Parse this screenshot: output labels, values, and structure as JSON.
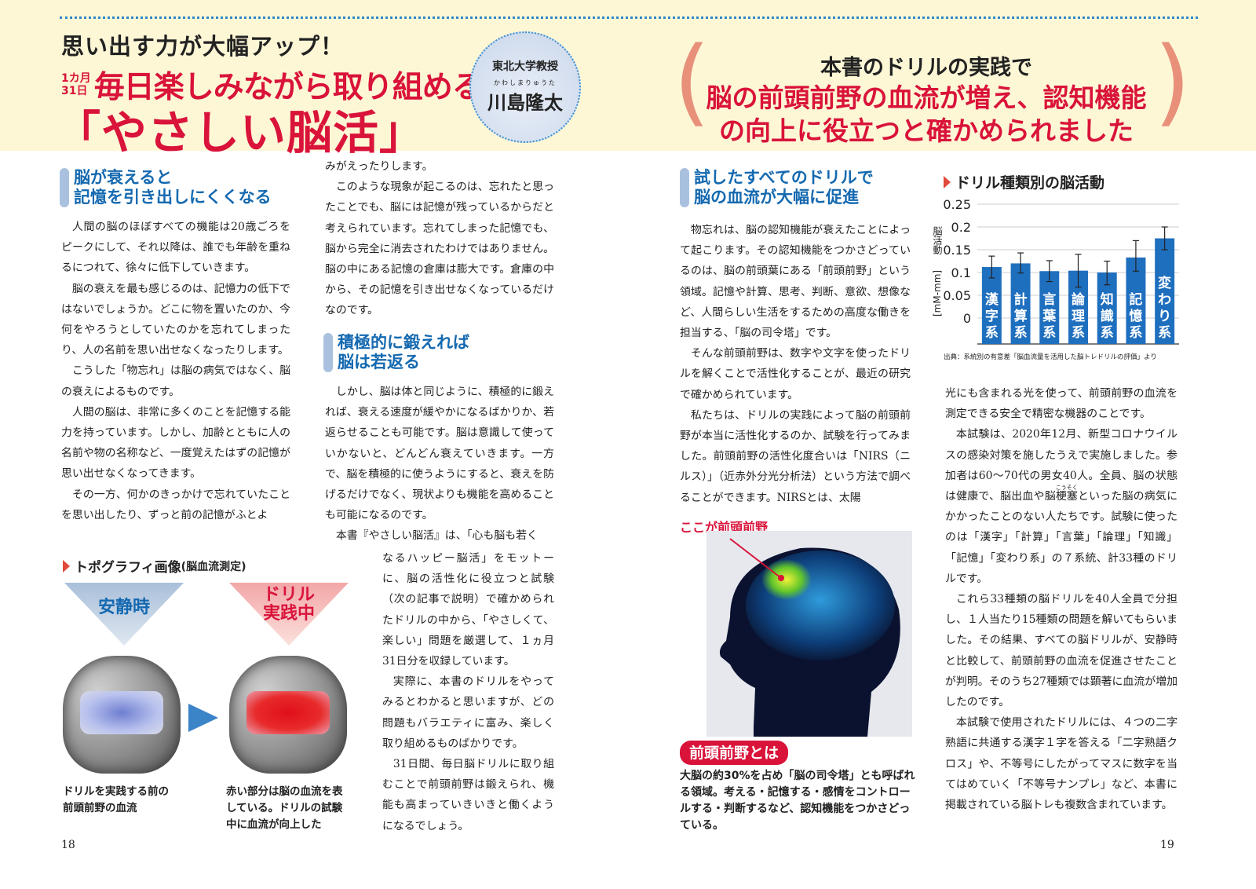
{
  "header": {
    "kicker": "思い出す力が大幅アップ！",
    "period_top": "1カ月",
    "period_bottom": "31日",
    "subtitle": "毎日楽しみながら取り組める",
    "title": "「やさしい脳活」",
    "author_role": "東北大学教授",
    "author_ruby": "かわしまりゅうた",
    "author_name": "川島隆太",
    "right_line1": "本書のドリルの実践で",
    "right_line2": "脳の前頭前野の血流が増え、認知機能",
    "right_line3": "の向上に役立つと確かめられました",
    "paren_open": "(",
    "paren_close": ")"
  },
  "left_page": {
    "heading1": [
      "脳が衰えると",
      "記憶を引き出しにくくなる"
    ],
    "col1": [
      "人間の脳のほぼすべての機能は20歳ごろをピークにして、それ以降は、誰でも年齢を重ねるにつれて、徐々に低下していきます。",
      "脳の衰えを最も感じるのは、記憶力の低下ではないでしょうか。どこに物を置いたのか、今何をやろうとしていたのかを忘れてしまったり、人の名前を思い出せなくなったりします。",
      "こうした「物忘れ」は脳の病気ではなく、脳の衰えによるものです。",
      "人間の脳は、非常に多くのことを記憶する能力を持っています。しかし、加齢とともに人の名前や物の名称など、一度覚えたはずの記憶が思い出せなくなってきます。",
      "その一方、何かのきっかけで忘れていたことを思い出したり、ずっと前の記憶がふとよ"
    ],
    "col2_top": [
      "みがえったりします。",
      "このような現象が起こるのは、忘れたと思ったことでも、脳には記憶が残っているからだと考えられています。忘れてしまった記憶でも、脳から完全に消去されたわけではありません。脳の中にある記憶の倉庫は膨大です。倉庫の中から、その記憶を引き出せなくなっているだけなのです。"
    ],
    "heading2": [
      "積極的に鍛えれば",
      "脳は若返る"
    ],
    "col2_mid": [
      "しかし、脳は体と同じように、積極的に鍛えれば、衰える速度が緩やかになるばかりか、若返らせることも可能です。脳は意識して使っていかないと、どんどん衰えていきます。一方で、脳を積極的に使うようにすると、衰えを防げるだけでなく、現状よりも機能を高めることも可能になるのです。",
      "本書『やさしい脳活』は、「心も脳も若く"
    ],
    "col2_wrap": [
      "なるハッピー脳活」をモットーに、脳の活性化に役立つと試験（次の記事で説明）で確かめられたドリルの中から、「やさしくて、楽しい」問題を厳選して、１ヵ月31日分を収録しています。",
      "実際に、本書のドリルをやってみるとわかると思いますが、どの問題もバラエティに富み、楽しく取り組めるものばかりです。",
      "31日間、毎日脳ドリルに取り組むことで前頭前野は鍛えられ、機能も高まっていきいきと働くようになるでしょう。"
    ],
    "topo": {
      "title": "トポグラフィ画像",
      "title_sub": "(脳血流測定)",
      "rest_label": "安静時",
      "drill_label_1": "ドリル",
      "drill_label_2": "実践中",
      "caption_left": [
        "ドリルを実践する前の",
        "前頭前野の血流"
      ],
      "caption_right": [
        "赤い部分は脳の血流を表",
        "している。ドリルの試験",
        "中に血流が向上した"
      ]
    },
    "page_number": "18"
  },
  "right_page": {
    "heading": [
      "試したすべてのドリルで",
      "脳の血流が大幅に促進"
    ],
    "col1": [
      "物忘れは、脳の認知機能が衰えたことによって起こります。その認知機能をつかさどっているのは、脳の前頭葉にある「前頭前野」という領域。記憶や計算、思考、判断、意欲、想像など、人間らしい生活をするための高度な働きを担当する、「脳の司令塔」です。",
      "そんな前頭前野は、数字や文字を使ったドリルを解くことで活性化することが、最近の研究で確かめられています。",
      "私たちは、ドリルの実践によって脳の前頭前野が本当に活性化するのか、試験を行ってみました。前頭前野の活性化度合いは「NIRS（ニルス）」（近赤外分光分析法）という方法で調べることができます。NIRSとは、太陽"
    ],
    "brain_label": "ここが前頭前野",
    "badge": "前頭前野とは",
    "definition": "大脳の約30%を占め「脳の司令塔」とも呼ばれる領域。考える・記憶する・感情をコントロールする・判断するなど、認知機能をつかさどっている。",
    "col2_p1": "光にも含まれる光を使って、前頭前野の血流を測定できる安全で精密な機器のことです。",
    "col2_p2_a": "本試験は、2020年12月、新型コロナウイルスの感染対策を施したうえで実施しました。参加者は60～70代の男女40人。全員、脳の状態は健康で、脳出血や脳",
    "col2_p2_ruby_base": "梗塞",
    "col2_p2_ruby": "こうそく",
    "col2_p2_b": "といった脳の病気にかかったことのない人たちです。試験に使ったのは「漢字」「計算」「言葉」「論理」「知識」「記憶」「変わり系」の７系統、計33種のドリルです。",
    "col2_rest": [
      "これら33種類の脳ドリルを40人全員で分担し、１人当たり15種類の問題を解いてもらいました。その結果、すべての脳ドリルが、安静時と比較して、前頭前野の血流を促進させたことが判明。そのうち27種類では顕著に血流が増加したのです。",
      "本試験で使用されたドリルには、４つの二字熟語に共通する漢字１字を答える「二字熟語クロス」や、不等号にしたがってマスに数字を当てはめていく「不等号ナンプレ」など、本書に掲載されている脳トレも複数含まれています。"
    ],
    "page_number": "19"
  },
  "chart_data": {
    "type": "bar",
    "title": "ドリル種類別の脳活動",
    "ylabel": "脳活動 [mM-mm]",
    "ylabel_top": "脳活動",
    "ylabel_unit": "[mM-mm]",
    "categories": [
      "漢字系",
      "計算系",
      "言葉系",
      "論理系",
      "知識系",
      "記憶系",
      "変わり系"
    ],
    "values": [
      0.112,
      0.12,
      0.103,
      0.104,
      0.1,
      0.133,
      0.175
    ],
    "error_low": [
      0.088,
      0.099,
      0.08,
      0.068,
      0.073,
      0.103,
      0.15
    ],
    "error_high": [
      0.136,
      0.143,
      0.126,
      0.14,
      0.125,
      0.17,
      0.2
    ],
    "yticks": [
      "0.25",
      "0.2",
      "0.15",
      "0.1",
      "0.05",
      "0"
    ],
    "ylim": [
      0,
      0.25
    ],
    "grid": true,
    "bar_color": "#1f6fbf",
    "source": "出典：系統別の有意差「脳血流量を活用した脳トレドリルの評価」より"
  },
  "colors": {
    "accent_red": "#d9133a",
    "heading_blue": "#1469b0",
    "band": "#fdf7d6",
    "paren": "#e8907a"
  }
}
